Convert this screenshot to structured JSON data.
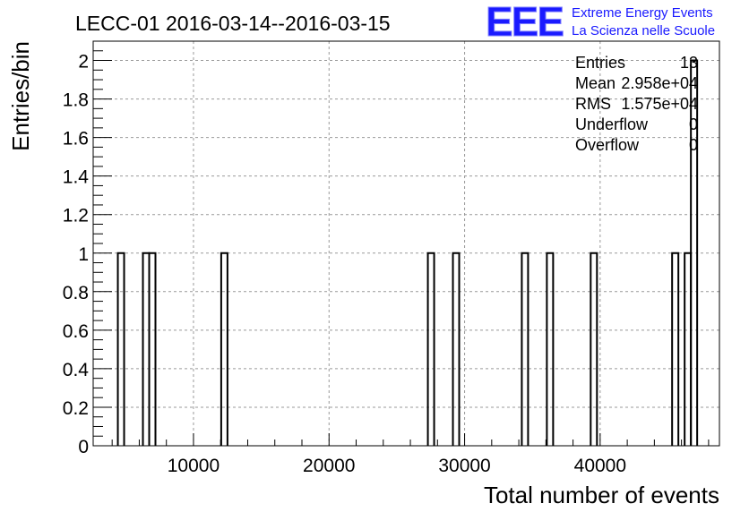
{
  "chart_data": {
    "type": "bar",
    "title": "LECC-01 2016-03-14--2016-03-15",
    "xlabel": "Total number of events",
    "ylabel": "Entries/bin",
    "xlim": [
      2600,
      48800
    ],
    "ylim": [
      0,
      2.1
    ],
    "xticks": [
      10000,
      20000,
      30000,
      40000
    ],
    "xtick_labels": [
      "10000",
      "20000",
      "30000",
      "40000"
    ],
    "yticks": [
      0,
      0.2,
      0.4,
      0.6,
      0.8,
      1,
      1.2,
      1.4,
      1.6,
      1.8,
      2
    ],
    "ytick_labels": [
      "0",
      "0.2",
      "0.4",
      "0.6",
      "0.8",
      "1",
      "1.2",
      "1.4",
      "1.6",
      "1.8",
      "2"
    ],
    "grid": true,
    "bin_width": 462,
    "bins": [
      {
        "x": 4420,
        "y": 1
      },
      {
        "x": 6270,
        "y": 1
      },
      {
        "x": 6732,
        "y": 1
      },
      {
        "x": 12045,
        "y": 1
      },
      {
        "x": 27291,
        "y": 1
      },
      {
        "x": 29139,
        "y": 1
      },
      {
        "x": 34221,
        "y": 1
      },
      {
        "x": 36069,
        "y": 1
      },
      {
        "x": 39303,
        "y": 1
      },
      {
        "x": 45309,
        "y": 1
      },
      {
        "x": 46233,
        "y": 1
      },
      {
        "x": 46695,
        "y": 2
      }
    ],
    "stats": [
      {
        "label": "Entries",
        "value": "13"
      },
      {
        "label": "Mean",
        "value": "2.958e+04"
      },
      {
        "label": "RMS",
        "value": "1.575e+04"
      },
      {
        "label": "Underflow",
        "value": "0"
      },
      {
        "label": "Overflow",
        "value": "0"
      }
    ],
    "logo": {
      "text": "EEE",
      "line1": "Extreme Energy Events",
      "line2": "La Scienza nelle Scuole",
      "color": "#1a1aff"
    }
  }
}
